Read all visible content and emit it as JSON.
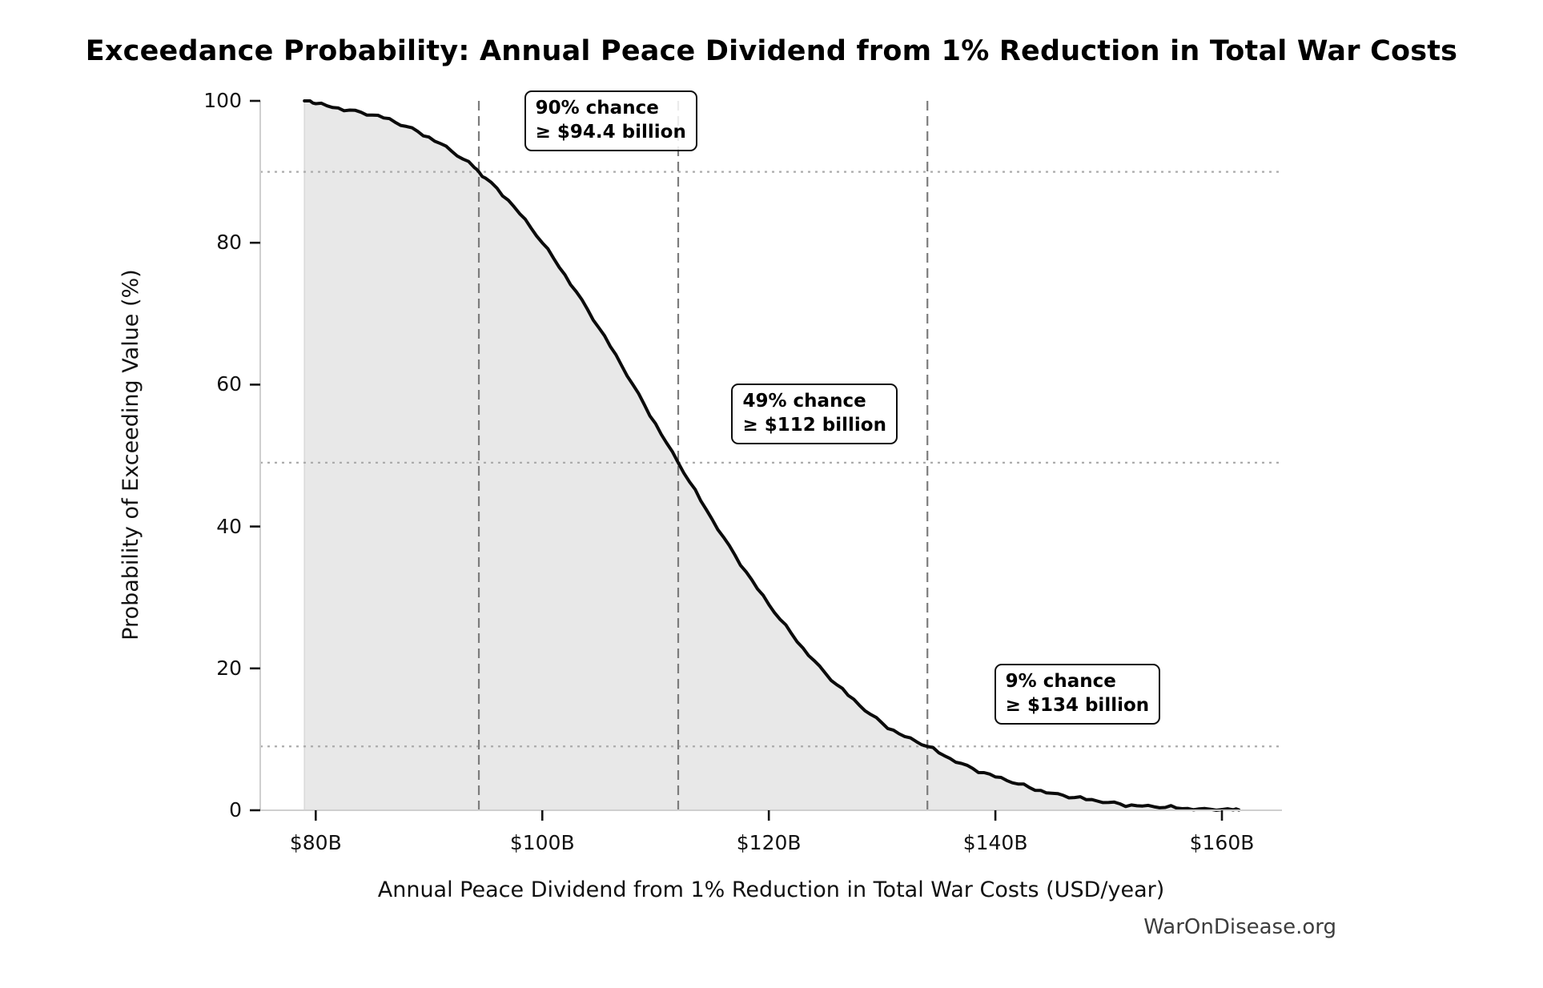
{
  "title": "Exceedance Probability: Annual Peace Dividend from 1% Reduction in Total War Costs",
  "watermark": "WarOnDisease.org",
  "colors": {
    "curve": "#0b0b0b",
    "fill": "#e8e8e8",
    "fill_edge": "#d9d9d9",
    "vline": "#7c7c7c",
    "hline": "#ababab",
    "spine": "#cfcfcf",
    "tick_mark": "#141414",
    "text": "#111111",
    "watermark": "#3d3d3d",
    "annotation_border": "#0d0d0d"
  },
  "chart_data": {
    "type": "line",
    "title": "Exceedance Probability: Annual Peace Dividend from 1% Reduction in Total War Costs",
    "xlabel": "Annual Peace Dividend from 1% Reduction in Total War Costs (USD/year)",
    "ylabel": "Probability of Exceeding Value (%)",
    "xlim": [
      75.1,
      165.3
    ],
    "ylim": [
      0,
      100
    ],
    "grid": "reference-lines-only",
    "legend": "none",
    "x_ticks": [
      {
        "value": 80,
        "label": "$80B"
      },
      {
        "value": 100,
        "label": "$100B"
      },
      {
        "value": 120,
        "label": "$120B"
      },
      {
        "value": 140,
        "label": "$140B"
      },
      {
        "value": 160,
        "label": "$160B"
      }
    ],
    "y_ticks": [
      {
        "value": 0,
        "label": "0"
      },
      {
        "value": 20,
        "label": "20"
      },
      {
        "value": 40,
        "label": "40"
      },
      {
        "value": 60,
        "label": "60"
      },
      {
        "value": 80,
        "label": "80"
      },
      {
        "value": 100,
        "label": "100"
      }
    ],
    "series": [
      {
        "name": "exceedance-probability-curve",
        "fill_to_zero": true,
        "points": [
          [
            79,
            100
          ],
          [
            79.5,
            100
          ],
          [
            80,
            99.6
          ],
          [
            81,
            99.3
          ],
          [
            82,
            99.0
          ],
          [
            83,
            98.7
          ],
          [
            84,
            98.4
          ],
          [
            85,
            98.0
          ],
          [
            86,
            97.6
          ],
          [
            87,
            97.0
          ],
          [
            88,
            96.4
          ],
          [
            89,
            95.7
          ],
          [
            90,
            94.9
          ],
          [
            91,
            94.0
          ],
          [
            92,
            92.9
          ],
          [
            93,
            91.8
          ],
          [
            94,
            90.6
          ],
          [
            94.4,
            90
          ],
          [
            95,
            89.1
          ],
          [
            96,
            87.7
          ],
          [
            97,
            86.0
          ],
          [
            98,
            84.1
          ],
          [
            99,
            82.1
          ],
          [
            100,
            80.0
          ],
          [
            101,
            77.8
          ],
          [
            102,
            75.5
          ],
          [
            103,
            73.1
          ],
          [
            104,
            70.6
          ],
          [
            105,
            68.0
          ],
          [
            106,
            65.4
          ],
          [
            107,
            62.7
          ],
          [
            108,
            60.0
          ],
          [
            109,
            57.2
          ],
          [
            110,
            54.5
          ],
          [
            111,
            51.7
          ],
          [
            112,
            49.0
          ],
          [
            113,
            46.3
          ],
          [
            114,
            43.6
          ],
          [
            115,
            41.0
          ],
          [
            116,
            38.5
          ],
          [
            117,
            36.0
          ],
          [
            118,
            33.6
          ],
          [
            119,
            31.2
          ],
          [
            120,
            29.0
          ],
          [
            121,
            26.9
          ],
          [
            122,
            24.9
          ],
          [
            123,
            22.9
          ],
          [
            124,
            21.1
          ],
          [
            125,
            19.3
          ],
          [
            126,
            17.7
          ],
          [
            127,
            16.2
          ],
          [
            128,
            14.8
          ],
          [
            129,
            13.5
          ],
          [
            130,
            12.3
          ],
          [
            131,
            11.3
          ],
          [
            132,
            10.4
          ],
          [
            133,
            9.7
          ],
          [
            134,
            9.0
          ],
          [
            135,
            8.1
          ],
          [
            136,
            7.3
          ],
          [
            137,
            6.6
          ],
          [
            138,
            5.9
          ],
          [
            139,
            5.3
          ],
          [
            140,
            4.7
          ],
          [
            141,
            4.2
          ],
          [
            142,
            3.7
          ],
          [
            143,
            3.2
          ],
          [
            144,
            2.8
          ],
          [
            145,
            2.4
          ],
          [
            146,
            2.1
          ],
          [
            147,
            1.8
          ],
          [
            148,
            1.5
          ],
          [
            149,
            1.3
          ],
          [
            150,
            1.1
          ],
          [
            151,
            0.9
          ],
          [
            152,
            0.75
          ],
          [
            153,
            0.6
          ],
          [
            154,
            0.5
          ],
          [
            155,
            0.4
          ],
          [
            156,
            0.3
          ],
          [
            157,
            0.25
          ],
          [
            158,
            0.2
          ],
          [
            159,
            0.15
          ],
          [
            160,
            0.1
          ],
          [
            161,
            0.06
          ],
          [
            161.5,
            0.05
          ]
        ]
      }
    ],
    "reference_vlines": [
      {
        "x": 94.4
      },
      {
        "x": 112
      },
      {
        "x": 134
      }
    ],
    "reference_hlines": [
      {
        "y": 90
      },
      {
        "y": 49
      },
      {
        "y": 9
      }
    ],
    "annotations": [
      {
        "line1": "90% chance",
        "line2": "≥ $94.4 billion",
        "x": 98.4,
        "y": 101.5
      },
      {
        "line1": "49% chance",
        "line2": "≥ $112 billion",
        "x": 116.7,
        "y": 60.2
      },
      {
        "line1": "9% chance",
        "line2": "≥ $134 billion",
        "x": 139.9,
        "y": 20.7
      }
    ]
  }
}
